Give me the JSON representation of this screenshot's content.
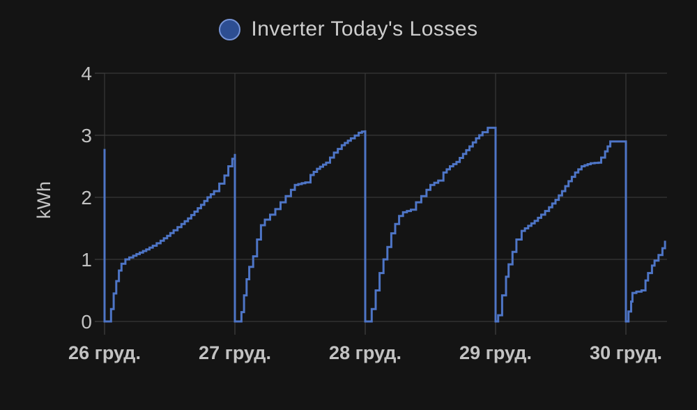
{
  "header": {
    "title": "Inverter Today's Losses",
    "legend_marker": "series-color-dot"
  },
  "chart_data": {
    "type": "line",
    "stepped": true,
    "title": "Inverter Today's Losses",
    "ylabel": "kWh",
    "unit": "kWh",
    "ylim": [
      0,
      4
    ],
    "y_ticks": [
      0,
      1,
      2,
      3,
      4
    ],
    "x_tick_labels": [
      "26 груд.",
      "27 груд.",
      "28 груд.",
      "29 груд.",
      "30 груд."
    ],
    "legend": [
      {
        "label": "Inverter Today's Losses",
        "color": "#4e75c6"
      }
    ],
    "grid": "on",
    "reset_from": 2.78,
    "daily_peaks_kwh": {
      "26": 2.7,
      "27": 3.08,
      "28": 3.12,
      "29": 2.9,
      "30_partial": 1.3
    },
    "days": [
      {
        "label": "26 груд.",
        "peak": 2.7,
        "points": [
          [
            0,
            0
          ],
          [
            0.025,
            0
          ],
          [
            0.05,
            0.2
          ],
          [
            0.07,
            0.45
          ],
          [
            0.09,
            0.65
          ],
          [
            0.11,
            0.82
          ],
          [
            0.13,
            0.93
          ],
          [
            0.16,
            1.0
          ],
          [
            0.22,
            1.06
          ],
          [
            0.27,
            1.11
          ],
          [
            0.32,
            1.16
          ],
          [
            0.37,
            1.22
          ],
          [
            0.43,
            1.3
          ],
          [
            0.48,
            1.38
          ],
          [
            0.53,
            1.47
          ],
          [
            0.59,
            1.57
          ],
          [
            0.64,
            1.66
          ],
          [
            0.69,
            1.77
          ],
          [
            0.74,
            1.88
          ],
          [
            0.79,
            2.0
          ],
          [
            0.84,
            2.1
          ],
          [
            0.88,
            2.22
          ],
          [
            0.92,
            2.35
          ],
          [
            0.95,
            2.5
          ],
          [
            0.98,
            2.62
          ],
          [
            1,
            2.7
          ]
        ]
      },
      {
        "label": "27 груд.",
        "peak": 3.08,
        "points": [
          [
            0,
            0
          ],
          [
            0.03,
            0
          ],
          [
            0.05,
            0.15
          ],
          [
            0.07,
            0.42
          ],
          [
            0.09,
            0.68
          ],
          [
            0.11,
            0.88
          ],
          [
            0.14,
            1.05
          ],
          [
            0.17,
            1.32
          ],
          [
            0.2,
            1.55
          ],
          [
            0.23,
            1.64
          ],
          [
            0.27,
            1.72
          ],
          [
            0.31,
            1.81
          ],
          [
            0.35,
            1.92
          ],
          [
            0.39,
            2.02
          ],
          [
            0.43,
            2.12
          ],
          [
            0.46,
            2.2
          ],
          [
            0.54,
            2.24
          ],
          [
            0.58,
            2.36
          ],
          [
            0.63,
            2.46
          ],
          [
            0.7,
            2.56
          ],
          [
            0.76,
            2.72
          ],
          [
            0.82,
            2.84
          ],
          [
            0.89,
            2.95
          ],
          [
            0.95,
            3.04
          ],
          [
            1,
            3.08
          ]
        ]
      },
      {
        "label": "28 груд.",
        "peak": 3.12,
        "points": [
          [
            0,
            0
          ],
          [
            0.025,
            0
          ],
          [
            0.05,
            0.2
          ],
          [
            0.08,
            0.5
          ],
          [
            0.11,
            0.78
          ],
          [
            0.14,
            1.0
          ],
          [
            0.17,
            1.2
          ],
          [
            0.2,
            1.42
          ],
          [
            0.23,
            1.57
          ],
          [
            0.26,
            1.7
          ],
          [
            0.29,
            1.76
          ],
          [
            0.35,
            1.8
          ],
          [
            0.39,
            1.92
          ],
          [
            0.43,
            2.02
          ],
          [
            0.47,
            2.12
          ],
          [
            0.5,
            2.2
          ],
          [
            0.56,
            2.27
          ],
          [
            0.6,
            2.4
          ],
          [
            0.65,
            2.5
          ],
          [
            0.7,
            2.57
          ],
          [
            0.75,
            2.7
          ],
          [
            0.8,
            2.82
          ],
          [
            0.85,
            2.95
          ],
          [
            0.9,
            3.05
          ],
          [
            0.94,
            3.12
          ],
          [
            1,
            3.12
          ]
        ]
      },
      {
        "label": "29 груд.",
        "peak": 2.9,
        "points": [
          [
            0,
            0
          ],
          [
            0.02,
            0.1
          ],
          [
            0.05,
            0.42
          ],
          [
            0.08,
            0.72
          ],
          [
            0.1,
            0.92
          ],
          [
            0.13,
            1.12
          ],
          [
            0.16,
            1.32
          ],
          [
            0.2,
            1.46
          ],
          [
            0.25,
            1.54
          ],
          [
            0.3,
            1.62
          ],
          [
            0.35,
            1.72
          ],
          [
            0.41,
            1.84
          ],
          [
            0.46,
            1.96
          ],
          [
            0.51,
            2.1
          ],
          [
            0.56,
            2.26
          ],
          [
            0.61,
            2.4
          ],
          [
            0.66,
            2.5
          ],
          [
            0.73,
            2.55
          ],
          [
            0.79,
            2.56
          ],
          [
            0.81,
            2.64
          ],
          [
            0.84,
            2.74
          ],
          [
            0.86,
            2.82
          ],
          [
            0.88,
            2.9
          ],
          [
            1,
            2.9
          ]
        ]
      },
      {
        "label": "30 груд.",
        "peak": 1.3,
        "partial": true,
        "points": [
          [
            0,
            0
          ],
          [
            0.02,
            0.16
          ],
          [
            0.04,
            0.32
          ],
          [
            0.05,
            0.46
          ],
          [
            0.08,
            0.48
          ],
          [
            0.12,
            0.5
          ],
          [
            0.15,
            0.66
          ],
          [
            0.17,
            0.78
          ],
          [
            0.2,
            0.9
          ],
          [
            0.22,
            0.98
          ],
          [
            0.25,
            1.07
          ],
          [
            0.28,
            1.18
          ],
          [
            0.3,
            1.3
          ]
        ]
      }
    ],
    "colors": {
      "line": "#4e75c6",
      "legend_fill": "#2d4e92",
      "legend_ring": "#7593d6",
      "grid": "#3f3f3f",
      "tick": "#4a4a4a",
      "axis_text": "#c2c2c2",
      "title_text": "#cdcdcd",
      "background": "#141414"
    }
  }
}
